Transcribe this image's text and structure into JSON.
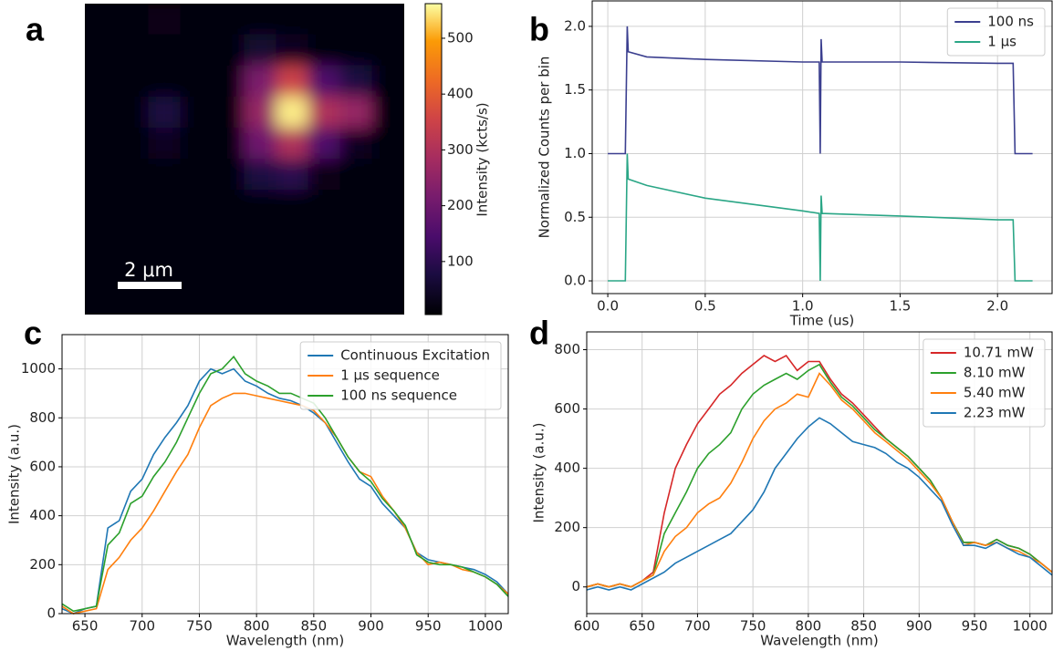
{
  "chart_data": [
    {
      "type": "heatmap",
      "panel_label": "a",
      "colormap": "inferno",
      "zlim": [
        5,
        562
      ],
      "z": [
        [
          15,
          15,
          30,
          15,
          15,
          15,
          15,
          15,
          15,
          15
        ],
        [
          15,
          15,
          15,
          15,
          15,
          60,
          40,
          15,
          15,
          15
        ],
        [
          15,
          15,
          15,
          15,
          15,
          220,
          350,
          150,
          80,
          15
        ],
        [
          15,
          15,
          80,
          15,
          15,
          260,
          550,
          300,
          260,
          15
        ],
        [
          15,
          15,
          40,
          15,
          15,
          200,
          300,
          150,
          40,
          15
        ],
        [
          15,
          15,
          15,
          15,
          15,
          80,
          100,
          30,
          15,
          15
        ],
        [
          15,
          15,
          15,
          15,
          15,
          15,
          15,
          15,
          15,
          15
        ],
        [
          15,
          15,
          15,
          15,
          15,
          15,
          15,
          15,
          15,
          15
        ],
        [
          15,
          15,
          15,
          15,
          15,
          15,
          15,
          15,
          15,
          15
        ],
        [
          15,
          15,
          15,
          15,
          15,
          15,
          15,
          15,
          15,
          15
        ]
      ],
      "colorbar_label": "Intensity (kcts/s)",
      "colorbar_ticks": [
        100,
        200,
        300,
        400,
        500
      ],
      "scalebar_label": "2 μm"
    },
    {
      "type": "line",
      "panel_label": "b",
      "xlabel": "Time (us)",
      "ylabel": "Normalized Counts per bin",
      "x": [
        0,
        0.09,
        0.1,
        0.105,
        0.2,
        0.5,
        1.0,
        1.085,
        1.09,
        1.095,
        1.1,
        1.5,
        2.0,
        2.08,
        2.09,
        2.18
      ],
      "series": [
        {
          "name": "100 ns",
          "color": "#3b3f8f",
          "values": [
            1.0,
            1.0,
            2.0,
            1.8,
            1.76,
            1.74,
            1.72,
            1.72,
            1.0,
            1.9,
            1.72,
            1.72,
            1.71,
            1.71,
            1.0,
            1.0
          ]
        },
        {
          "name": "1 μs",
          "color": "#2aa686",
          "values": [
            0,
            0,
            1.0,
            0.8,
            0.75,
            0.65,
            0.55,
            0.53,
            0,
            0.67,
            0.53,
            0.51,
            0.48,
            0.48,
            0,
            0
          ]
        }
      ],
      "xlim": [
        -0.08,
        2.28
      ],
      "ylim": [
        -0.1,
        2.2
      ],
      "xticks": [
        {
          "value": 0,
          "label": "0.0"
        },
        0.5,
        {
          "value": 1,
          "label": "1.0"
        },
        1.5,
        {
          "value": 2,
          "label": "2.0"
        }
      ],
      "yticks": [
        {
          "value": 0,
          "label": "0.0"
        },
        0.5,
        {
          "value": 1,
          "label": "1.0"
        },
        1.5,
        {
          "value": 2,
          "label": "2.0"
        }
      ],
      "grid": true,
      "legend": "upper right"
    },
    {
      "type": "line",
      "panel_label": "c",
      "xlabel": "Wavelength (nm)",
      "ylabel": "Intensity (a.u.)",
      "x": [
        630,
        640,
        650,
        660,
        670,
        680,
        690,
        700,
        710,
        720,
        730,
        740,
        750,
        760,
        770,
        780,
        790,
        800,
        810,
        820,
        830,
        840,
        850,
        860,
        870,
        880,
        890,
        900,
        910,
        920,
        930,
        940,
        950,
        960,
        970,
        980,
        990,
        1000,
        1010,
        1020
      ],
      "series": [
        {
          "name": "Continuous Excitation",
          "color": "#1f77b4",
          "values": [
            20,
            0,
            20,
            30,
            350,
            380,
            500,
            550,
            650,
            720,
            780,
            850,
            950,
            1000,
            980,
            1000,
            950,
            930,
            900,
            880,
            870,
            850,
            820,
            780,
            700,
            620,
            550,
            520,
            450,
            400,
            350,
            250,
            220,
            210,
            200,
            190,
            180,
            160,
            130,
            80
          ]
        },
        {
          "name": "1 μs sequence",
          "color": "#ff7f0e",
          "values": [
            30,
            0,
            10,
            20,
            180,
            230,
            300,
            350,
            420,
            500,
            580,
            650,
            760,
            850,
            880,
            900,
            900,
            890,
            880,
            870,
            860,
            850,
            830,
            780,
            720,
            640,
            580,
            560,
            480,
            420,
            350,
            250,
            200,
            210,
            200,
            180,
            170,
            150,
            120,
            80
          ]
        },
        {
          "name": "100 ns sequence",
          "color": "#2ca02c",
          "values": [
            40,
            10,
            20,
            30,
            280,
            330,
            450,
            480,
            560,
            620,
            700,
            800,
            900,
            980,
            1000,
            1050,
            980,
            950,
            930,
            900,
            900,
            880,
            860,
            800,
            720,
            640,
            580,
            540,
            470,
            420,
            360,
            240,
            210,
            200,
            200,
            190,
            170,
            150,
            120,
            70
          ]
        }
      ],
      "xlim": [
        630,
        1020
      ],
      "ylim": [
        0,
        1140
      ],
      "xticks": [
        650,
        700,
        750,
        800,
        850,
        900,
        950,
        1000
      ],
      "yticks": [
        0,
        200,
        400,
        600,
        800,
        1000
      ],
      "grid": true,
      "legend": "upper right"
    },
    {
      "type": "line",
      "panel_label": "d",
      "xlabel": "Wavelength (nm)",
      "ylabel": "Intensity (a.u.)",
      "x": [
        600,
        610,
        620,
        630,
        640,
        650,
        660,
        670,
        680,
        690,
        700,
        710,
        720,
        730,
        740,
        750,
        760,
        770,
        780,
        790,
        800,
        810,
        820,
        830,
        840,
        850,
        860,
        870,
        880,
        890,
        900,
        910,
        920,
        930,
        940,
        950,
        960,
        970,
        980,
        990,
        1000,
        1010,
        1020
      ],
      "series": [
        {
          "name": "10.71 mW",
          "color": "#d62728",
          "values": [
            0,
            10,
            0,
            10,
            0,
            20,
            50,
            250,
            400,
            480,
            550,
            600,
            650,
            680,
            720,
            750,
            780,
            760,
            780,
            730,
            760,
            760,
            700,
            650,
            620,
            580,
            540,
            500,
            470,
            440,
            400,
            360,
            300,
            220,
            150,
            150,
            140,
            160,
            140,
            130,
            110,
            80,
            50
          ]
        },
        {
          "name": "8.10 mW",
          "color": "#2ca02c",
          "values": [
            0,
            10,
            0,
            10,
            0,
            20,
            40,
            180,
            250,
            320,
            400,
            450,
            480,
            520,
            600,
            650,
            680,
            700,
            720,
            700,
            730,
            750,
            690,
            640,
            610,
            570,
            530,
            500,
            470,
            440,
            400,
            360,
            300,
            220,
            150,
            150,
            140,
            160,
            140,
            130,
            110,
            80,
            50
          ]
        },
        {
          "name": "5.40 mW",
          "color": "#ff7f0e",
          "values": [
            0,
            10,
            0,
            10,
            0,
            20,
            40,
            120,
            170,
            200,
            250,
            280,
            300,
            350,
            420,
            500,
            560,
            600,
            620,
            650,
            640,
            720,
            680,
            630,
            600,
            560,
            520,
            490,
            460,
            430,
            390,
            350,
            300,
            220,
            140,
            150,
            140,
            150,
            130,
            120,
            100,
            80,
            50
          ]
        },
        {
          "name": "2.23 mW",
          "color": "#1f77b4",
          "values": [
            -10,
            0,
            -10,
            0,
            -10,
            10,
            30,
            50,
            80,
            100,
            120,
            140,
            160,
            180,
            220,
            260,
            320,
            400,
            450,
            500,
            540,
            570,
            550,
            520,
            490,
            480,
            470,
            450,
            420,
            400,
            370,
            330,
            290,
            210,
            140,
            140,
            130,
            150,
            130,
            110,
            100,
            70,
            40
          ]
        }
      ],
      "xlim": [
        600,
        1020
      ],
      "ylim": [
        -90,
        860
      ],
      "xticks": [
        600,
        650,
        700,
        750,
        800,
        850,
        900,
        950,
        1000
      ],
      "yticks": [
        0,
        200,
        400,
        600,
        800
      ],
      "grid": true,
      "legend": "upper right"
    }
  ]
}
